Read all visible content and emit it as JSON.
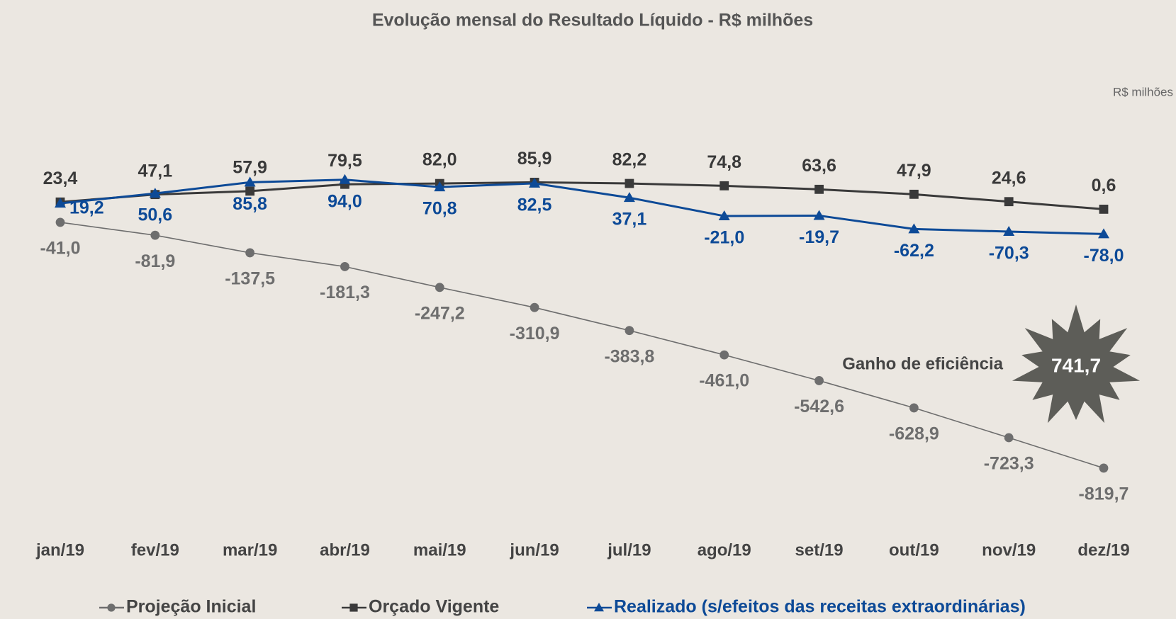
{
  "chart_data": {
    "type": "line",
    "title": "Evolução mensal do Resultado Líquido - R$ milhões",
    "unit_label": "R$ milhões",
    "categories": [
      "jan/19",
      "fev/19",
      "mar/19",
      "abr/19",
      "mai/19",
      "jun/19",
      "jul/19",
      "ago/19",
      "set/19",
      "out/19",
      "nov/19",
      "dez/19"
    ],
    "ylim": [
      -950,
      190
    ],
    "series": [
      {
        "name": "Projeção Inicial",
        "color": "#6e6e6e",
        "marker": "circle",
        "values": [
          -41.0,
          -81.9,
          -137.5,
          -181.3,
          -247.2,
          -310.9,
          -383.8,
          -461.0,
          -542.6,
          -628.9,
          -723.3,
          -819.7
        ],
        "value_labels": [
          "-41,0",
          "-81,9",
          "-137,5",
          "-181,3",
          "-247,2",
          "-310,9",
          "-383,8",
          "-461,0",
          "-542,6",
          "-628,9",
          "-723,3",
          "-819,7"
        ]
      },
      {
        "name": "Orçado Vigente",
        "color": "#3a3a3a",
        "marker": "square",
        "values": [
          23.4,
          47.1,
          57.9,
          79.5,
          82.0,
          85.9,
          82.2,
          74.8,
          63.6,
          47.9,
          24.6,
          0.6
        ],
        "value_labels": [
          "23,4",
          "47,1",
          "57,9",
          "79,5",
          "82,0",
          "85,9",
          "82,2",
          "74,8",
          "63,6",
          "47,9",
          "24,6",
          "0,6"
        ]
      },
      {
        "name": "Realizado (s/efeitos das receitas extraordinárias)",
        "color": "#0d4a97",
        "marker": "triangle",
        "values": [
          19.2,
          50.6,
          85.8,
          94.0,
          70.8,
          82.5,
          37.1,
          -21.0,
          -19.7,
          -62.2,
          -70.3,
          -78.0
        ],
        "value_labels": [
          "19,2",
          "50,6",
          "85,8",
          "94,0",
          "70,8",
          "82,5",
          "37,1",
          "-21,0",
          "-19,7",
          "-62,2",
          "-70,3",
          "-78,0"
        ]
      }
    ],
    "annotation": {
      "text": "Ganho de eficiência",
      "value": 741.7,
      "label": "741,7"
    }
  }
}
